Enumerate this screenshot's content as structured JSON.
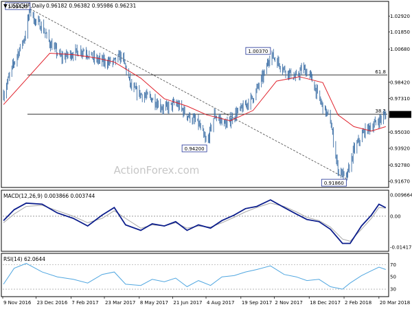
{
  "header": {
    "symbol_label": "USDCHF,Daily",
    "ohlc_text": "0.96182 0.96382 0.95986 0.96231",
    "dropdown_glyph": "▼"
  },
  "watermark": "ActionForex.com",
  "colors": {
    "price_bars": "#3b6ea5",
    "moving_average": "#e0202a",
    "macd_line": "#0b1d8c",
    "signal_line": "#a8a8a8",
    "rsi_line": "#4fa6e0",
    "trendline": "#444444",
    "level_line": "#333333",
    "label_box": "#1c2f95"
  },
  "chart_data": [
    {
      "type": "line",
      "panel": "price",
      "title": "USDCHF,Daily",
      "values_text": "0.96182 0.96382 0.95986 0.96231",
      "series": [
        {
          "name": "",
          "x": [
            "2016-11-10",
            "2016-11-24",
            "2016-12-08",
            "2016-12-15",
            "2016-12-20",
            "2016-12-31",
            "2017-01-10",
            "2017-01-25",
            "2017-02-10",
            "2017-02-24",
            "2017-03-10",
            "2017-03-25",
            "2017-04-05",
            "2017-04-15",
            "2017-04-28",
            "2017-05-10",
            "2017-05-25",
            "2017-06-10",
            "2017-06-25",
            "2017-07-10",
            "2017-07-25",
            "2017-08-05",
            "2017-08-15",
            "2017-08-31",
            "2017-09-10",
            "2017-09-20",
            "2017-10-05",
            "2017-10-20",
            "2017-10-28",
            "2017-11-05",
            "2017-11-15",
            "2017-11-30",
            "2017-12-10",
            "2017-12-20",
            "2017-12-31",
            "2018-01-15",
            "2018-01-25",
            "2018-02-05",
            "2018-02-15",
            "2018-03-01",
            "2018-03-15",
            "2018-03-29"
          ],
          "values": [
            0.976,
            0.998,
            1.015,
            1.0342,
            1.027,
            1.022,
            1.011,
            1.001,
            1.004,
            1.006,
            1.0,
            0.998,
            0.998,
            1.003,
            0.98,
            0.976,
            0.973,
            0.966,
            0.97,
            0.962,
            0.956,
            0.942,
            0.962,
            0.955,
            0.962,
            0.966,
            0.974,
            0.99,
            1.0037,
            0.999,
            0.993,
            0.987,
            0.994,
            0.988,
            0.973,
            0.958,
            0.925,
            0.9186,
            0.938,
            0.951,
            0.956,
            0.9623
          ]
        },
        {
          "name": "",
          "x": [
            "2016-11-10",
            "2016-12-08",
            "2017-01-10",
            "2017-02-10",
            "2017-03-10",
            "2017-04-05",
            "2017-05-10",
            "2017-06-10",
            "2017-07-10",
            "2017-08-05",
            "2017-09-05",
            "2017-10-05",
            "2017-11-05",
            "2017-12-05",
            "2018-01-05",
            "2018-01-25",
            "2018-02-15",
            "2018-03-10",
            "2018-03-29"
          ],
          "values": [
            0.969,
            0.985,
            1.004,
            1.003,
            1.001,
            0.998,
            0.987,
            0.973,
            0.968,
            0.962,
            0.958,
            0.965,
            0.985,
            0.988,
            0.984,
            0.962,
            0.954,
            0.951,
            0.954
          ]
        }
      ],
      "annotations": [
        {
          "label": "1.03420",
          "date": "2016-12-15",
          "value": 1.0342
        },
        {
          "label": "1.00370",
          "date": "2017-10-28",
          "value": 1.0037
        },
        {
          "label": "0.94200",
          "date": "2017-08-05",
          "value": 0.942
        },
        {
          "label": "0.91860",
          "date": "2018-02-05",
          "value": 0.9186
        }
      ],
      "levels": [
        {
          "label": "61.8",
          "value": 0.9892
        },
        {
          "label": "38.2",
          "value": 0.9625
        }
      ],
      "trendline": {
        "from": {
          "date": "2016-12-15",
          "value": 1.0342
        },
        "to": {
          "date": "2018-02-05",
          "value": 0.9186
        }
      },
      "current_price_label": "0.96231",
      "y_ticks": [
        1.0292,
        1.0185,
        1.0068,
        0.9842,
        0.9731,
        0.9503,
        0.9392,
        0.9278,
        0.9167
      ],
      "y_tick_labels": [
        "1.02920",
        "1.01850",
        "1.00680",
        "0.98420",
        "0.97310",
        "0.95030",
        "0.93920",
        "0.92780",
        "0.91670"
      ],
      "ylim": [
        0.9135,
        1.0365
      ],
      "xlim": [
        "2016-11-09",
        "2018-03-31"
      ]
    },
    {
      "type": "line",
      "panel": "macd",
      "title": "MACD(12,26,9) 0.003866 0.003744",
      "x": [
        "2016-11-10",
        "2016-11-24",
        "2016-12-10",
        "2016-12-31",
        "2017-01-20",
        "2017-02-10",
        "2017-03-01",
        "2017-03-20",
        "2017-04-05",
        "2017-04-20",
        "2017-05-10",
        "2017-05-25",
        "2017-06-10",
        "2017-06-25",
        "2017-07-10",
        "2017-07-25",
        "2017-08-10",
        "2017-08-25",
        "2017-09-10",
        "2017-09-25",
        "2017-10-10",
        "2017-10-28",
        "2017-11-15",
        "2017-12-01",
        "2017-12-15",
        "2017-12-31",
        "2018-01-15",
        "2018-01-31",
        "2018-02-10",
        "2018-02-25",
        "2018-03-10",
        "2018-03-20",
        "2018-03-29"
      ],
      "series": [
        {
          "name": "",
          "values": [
            -0.002,
            0.003,
            0.006,
            0.0055,
            0.0015,
            -0.001,
            -0.0045,
            0.0005,
            0.004,
            -0.004,
            -0.0065,
            -0.0035,
            -0.0045,
            -0.0025,
            -0.0065,
            -0.004,
            -0.0055,
            -0.002,
            0.0005,
            0.0035,
            0.0045,
            0.0075,
            0.004,
            0.001,
            -0.0015,
            -0.0025,
            -0.006,
            -0.0125,
            -0.0125,
            -0.0045,
            0.0005,
            0.0055,
            0.0039
          ]
        },
        {
          "name": "",
          "values": [
            -0.003,
            0.001,
            0.0045,
            0.005,
            0.0025,
            0.0,
            -0.003,
            -0.001,
            0.0025,
            -0.001,
            -0.0055,
            -0.004,
            -0.0045,
            -0.003,
            -0.0055,
            -0.0045,
            -0.005,
            -0.003,
            -0.0005,
            0.002,
            0.004,
            0.006,
            0.0045,
            0.002,
            -0.0005,
            -0.002,
            -0.005,
            -0.0105,
            -0.0115,
            -0.006,
            -0.001,
            0.004,
            0.0037
          ]
        }
      ],
      "y_ticks": [
        0.009664,
        0.0,
        -0.014171
      ],
      "y_tick_labels": [
        "0.009664",
        "0.00",
        "-0.014171"
      ],
      "ylim": [
        -0.0155,
        0.011
      ]
    },
    {
      "type": "line",
      "panel": "rsi",
      "title": "RSI(14) 62.0644",
      "x": [
        "2016-11-10",
        "2016-11-24",
        "2016-12-10",
        "2016-12-31",
        "2017-01-20",
        "2017-02-10",
        "2017-03-01",
        "2017-03-20",
        "2017-04-05",
        "2017-04-20",
        "2017-05-10",
        "2017-05-25",
        "2017-06-10",
        "2017-06-25",
        "2017-07-10",
        "2017-07-25",
        "2017-08-10",
        "2017-08-25",
        "2017-09-10",
        "2017-09-25",
        "2017-10-10",
        "2017-10-28",
        "2017-11-15",
        "2017-12-01",
        "2017-12-15",
        "2017-12-31",
        "2018-01-15",
        "2018-01-31",
        "2018-02-10",
        "2018-02-25",
        "2018-03-10",
        "2018-03-20",
        "2018-03-29"
      ],
      "values": [
        38,
        64,
        72,
        58,
        50,
        46,
        40,
        54,
        58,
        38,
        36,
        46,
        42,
        48,
        34,
        44,
        36,
        50,
        52,
        58,
        62,
        68,
        54,
        50,
        44,
        46,
        34,
        30,
        40,
        52,
        60,
        66,
        62.06
      ],
      "levels": [
        70,
        30
      ],
      "y_ticks": [
        70,
        50,
        30
      ],
      "y_tick_labels": [
        "70",
        "50",
        "30"
      ],
      "ylim": [
        20,
        85
      ]
    }
  ],
  "x_axis": {
    "labels": [
      "9 Nov 2016",
      "23 Dec 2016",
      "7 Feb 2017",
      "23 Mar 2017",
      "8 May 2017",
      "21 Jun 2017",
      "4 Aug 2017",
      "19 Sep 2017",
      "2 Nov 2017",
      "18 Dec 2017",
      "2 Feb 2018",
      "20 Mar 2018"
    ],
    "dates": [
      "2016-11-09",
      "2016-12-23",
      "2017-02-07",
      "2017-03-23",
      "2017-05-08",
      "2017-06-21",
      "2017-08-04",
      "2017-09-19",
      "2017-11-02",
      "2017-12-18",
      "2018-02-02",
      "2018-03-20"
    ]
  }
}
